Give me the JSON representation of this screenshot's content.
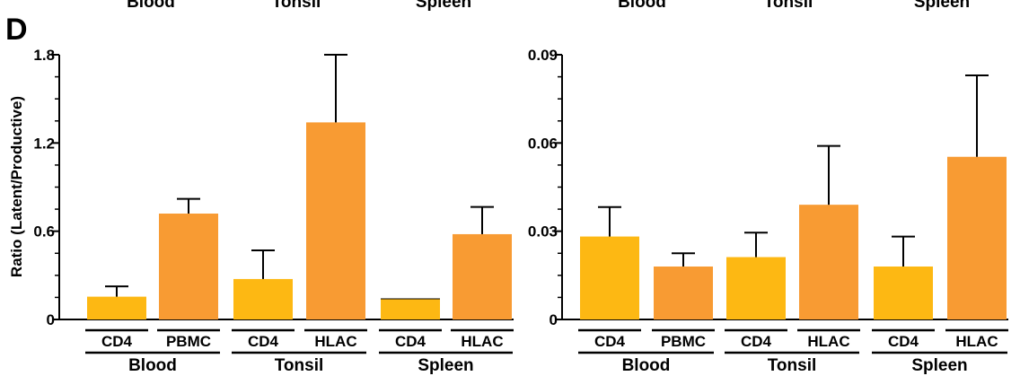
{
  "panel_label": "D",
  "top_labels": [
    "Blood",
    "Tonsil",
    "Spleen",
    "Blood",
    "Tonsil",
    "Spleen"
  ],
  "colors": {
    "cd4": "#fdb813",
    "other": "#f89b33"
  },
  "chart_data": [
    {
      "type": "bar",
      "ylabel": "Ratio (Latent/Productive)",
      "ylim": [
        0,
        1.8
      ],
      "yticks": [
        0,
        0.6,
        1.2,
        1.8
      ],
      "ytick_labels": [
        "0",
        "0.6",
        "1.2",
        "1.8"
      ],
      "minor_per_major": 4,
      "categories": [
        "CD4",
        "PBMC",
        "CD4",
        "HLAC",
        "CD4",
        "HLAC"
      ],
      "values": [
        0.155,
        0.72,
        0.275,
        1.34,
        0.14,
        0.58
      ],
      "errors": [
        0.07,
        0.1,
        0.195,
        0.46,
        0.0,
        0.185
      ],
      "bar_colors": [
        "cd4",
        "other",
        "cd4",
        "other",
        "cd4",
        "other"
      ],
      "groups": [
        "Blood",
        "Tonsil",
        "Spleen"
      ]
    },
    {
      "type": "bar",
      "ylabel": "",
      "ylim": [
        0,
        0.09
      ],
      "yticks": [
        0,
        0.03,
        0.06,
        0.09
      ],
      "ytick_labels": [
        "0",
        "0.03",
        "0.06",
        "0.09"
      ],
      "minor_per_major": 4,
      "categories": [
        "CD4",
        "PBMC",
        "CD4",
        "HLAC",
        "CD4",
        "HLAC"
      ],
      "values": [
        0.0282,
        0.018,
        0.0212,
        0.039,
        0.018,
        0.0553
      ],
      "errors": [
        0.01,
        0.0045,
        0.0083,
        0.02,
        0.0102,
        0.0277
      ],
      "bar_colors": [
        "cd4",
        "other",
        "cd4",
        "other",
        "cd4",
        "other"
      ],
      "groups": [
        "Blood",
        "Tonsil",
        "Spleen"
      ]
    }
  ]
}
